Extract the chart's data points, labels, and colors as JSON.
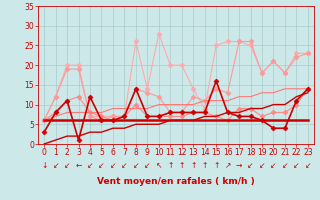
{
  "background_color": "#cde8e8",
  "grid_color": "#aacccc",
  "xlabel": "Vent moyen/en rafales ( km/h )",
  "xlabel_color": "#cc0000",
  "tick_color": "#cc0000",
  "xlim": [
    -0.5,
    23.5
  ],
  "ylim": [
    0,
    35
  ],
  "yticks": [
    0,
    5,
    10,
    15,
    20,
    25,
    30,
    35
  ],
  "xticks": [
    0,
    1,
    2,
    3,
    4,
    5,
    6,
    7,
    8,
    9,
    10,
    11,
    12,
    13,
    14,
    15,
    16,
    17,
    18,
    19,
    20,
    21,
    22,
    23
  ],
  "series": [
    {
      "x": [
        0,
        1,
        2,
        3,
        4,
        5,
        6,
        7,
        8,
        9,
        10,
        11,
        12,
        13,
        14,
        15,
        16,
        17,
        18,
        19,
        20,
        21,
        22,
        23
      ],
      "y": [
        6,
        12,
        20,
        20,
        7,
        7,
        7,
        7,
        26,
        14,
        28,
        20,
        20,
        14,
        9,
        25,
        26,
        26,
        25,
        18,
        21,
        18,
        23,
        23
      ],
      "color": "#ffaaaa",
      "linewidth": 0.8,
      "marker": "D",
      "markersize": 2.5,
      "zorder": 2
    },
    {
      "x": [
        0,
        1,
        2,
        3,
        4,
        5,
        6,
        7,
        8,
        9,
        10,
        11,
        12,
        13,
        14,
        15,
        16,
        17,
        18,
        19,
        20,
        21,
        22,
        23
      ],
      "y": [
        6,
        12,
        19,
        19,
        7,
        6,
        7,
        7,
        14,
        13,
        12,
        8,
        8,
        12,
        11,
        14,
        13,
        26,
        26,
        18,
        21,
        18,
        22,
        23
      ],
      "color": "#ff9999",
      "linewidth": 0.8,
      "marker": "D",
      "markersize": 2.5,
      "zorder": 2
    },
    {
      "x": [
        0,
        1,
        2,
        3,
        4,
        5,
        6,
        7,
        8,
        9,
        10,
        11,
        12,
        13,
        14,
        15,
        16,
        17,
        18,
        19,
        20,
        21,
        22,
        23
      ],
      "y": [
        6,
        8,
        11,
        12,
        8,
        7,
        6,
        7,
        10,
        7,
        7,
        7,
        7,
        8,
        8,
        7,
        6,
        9,
        9,
        7,
        8,
        8,
        10,
        14
      ],
      "color": "#ff8888",
      "linewidth": 0.8,
      "marker": "D",
      "markersize": 2.5,
      "zorder": 2
    },
    {
      "x": [
        0,
        1,
        2,
        3,
        4,
        5,
        6,
        7,
        8,
        9,
        10,
        11,
        12,
        13,
        14,
        15,
        16,
        17,
        18,
        19,
        20,
        21,
        22,
        23
      ],
      "y": [
        3,
        8,
        11,
        1,
        12,
        6,
        6,
        7,
        14,
        7,
        7,
        8,
        8,
        8,
        8,
        16,
        8,
        7,
        7,
        6,
        4,
        4,
        11,
        14
      ],
      "color": "#cc0000",
      "linewidth": 1.2,
      "marker": "D",
      "markersize": 2.5,
      "zorder": 4
    },
    {
      "x": [
        0,
        1,
        2,
        3,
        4,
        5,
        6,
        7,
        8,
        9,
        10,
        11,
        12,
        13,
        14,
        15,
        16,
        17,
        18,
        19,
        20,
        21,
        22,
        23
      ],
      "y": [
        6,
        6,
        6,
        6,
        6,
        6,
        6,
        6,
        6,
        6,
        6,
        6,
        6,
        6,
        6,
        6,
        6,
        6,
        6,
        6,
        6,
        6,
        6,
        6
      ],
      "color": "#cc0000",
      "linewidth": 1.8,
      "marker": null,
      "markersize": 0,
      "zorder": 3
    },
    {
      "x": [
        0,
        1,
        2,
        3,
        4,
        5,
        6,
        7,
        8,
        9,
        10,
        11,
        12,
        13,
        14,
        15,
        16,
        17,
        18,
        19,
        20,
        21,
        22,
        23
      ],
      "y": [
        0,
        1,
        2,
        2,
        3,
        3,
        4,
        4,
        5,
        5,
        5,
        6,
        6,
        6,
        7,
        7,
        8,
        8,
        9,
        9,
        10,
        10,
        12,
        13
      ],
      "color": "#cc0000",
      "linewidth": 1.0,
      "marker": null,
      "markersize": 0,
      "zorder": 3
    },
    {
      "x": [
        0,
        1,
        2,
        3,
        4,
        5,
        6,
        7,
        8,
        9,
        10,
        11,
        12,
        13,
        14,
        15,
        16,
        17,
        18,
        19,
        20,
        21,
        22,
        23
      ],
      "y": [
        6,
        7,
        8,
        8,
        8,
        8,
        9,
        9,
        9,
        9,
        10,
        10,
        10,
        10,
        11,
        11,
        11,
        12,
        12,
        13,
        13,
        14,
        14,
        14
      ],
      "color": "#ff7777",
      "linewidth": 0.8,
      "marker": null,
      "markersize": 0,
      "zorder": 2
    }
  ],
  "wind_symbols": [
    "↓",
    "↙",
    "↙",
    "←",
    "↙",
    "↙",
    "↙",
    "↙",
    "↙",
    "↙",
    "↖",
    "↑",
    "↑",
    "↑",
    "↑",
    "↑",
    "↗",
    "→",
    "↙",
    "↙",
    "↙",
    "↙",
    "↙",
    "↙"
  ],
  "wind_color": "#cc0000",
  "wind_fontsize": 5.5
}
